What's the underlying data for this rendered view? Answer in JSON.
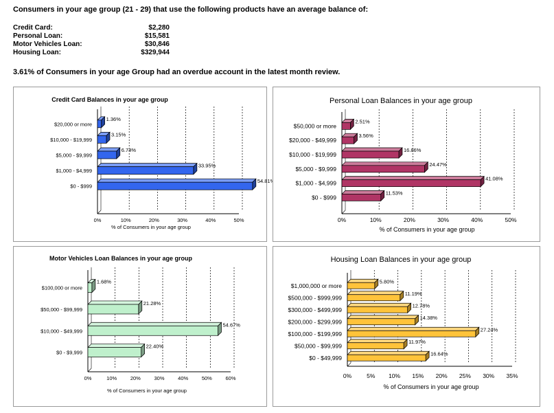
{
  "header": {
    "intro": "Consumers in your age group (21 - 29) that use the following products have an average balance of:",
    "balances": [
      {
        "label": "Credit Card:",
        "value": "$2,280"
      },
      {
        "label": "Personal Loan:",
        "value": "$15,581"
      },
      {
        "label": "Motor Vehicles Loan:",
        "value": "$30,846"
      },
      {
        "label": "Housing Loan:",
        "value": "$329,944"
      }
    ],
    "overdue": "3.61% of Consumers in your age Group had an overdue account in the latest month review."
  },
  "chart_data": [
    {
      "type": "bar",
      "title": "Credit Card Balances in your age group",
      "xlabel": "% of Consumers in your age group",
      "categories": [
        "$20,000 or more",
        "$10,000 - $19,999",
        "$5,000 - $9,999",
        "$1,000 - $4,999",
        "$0 - $999"
      ],
      "values": [
        1.36,
        3.15,
        6.74,
        33.95,
        54.81
      ],
      "value_labels": [
        "1.36%",
        "3.15%",
        "6.74%",
        "33.95%",
        "54.81%"
      ],
      "ticks": [
        "0%",
        "10%",
        "20%",
        "30%",
        "40%",
        "50%"
      ],
      "xlim": [
        0,
        50
      ],
      "color": "#3366ee"
    },
    {
      "type": "bar",
      "title": "Personal Loan Balances in your age group",
      "xlabel": "% of Consumers in your age group",
      "categories": [
        "$50,000 or more",
        "$20,000 - $49,999",
        "$10,000 - $19,999",
        "$5,000 - $9,999",
        "$1,000 - $4,999",
        "$0 - $999"
      ],
      "values": [
        2.51,
        3.56,
        16.86,
        24.47,
        41.08,
        11.53
      ],
      "value_labels": [
        "2.51%",
        "3.56%",
        "16.86%",
        "24.47%",
        "41.08%",
        "11.53%"
      ],
      "ticks": [
        "0%",
        "10%",
        "20%",
        "30%",
        "40%",
        "50%"
      ],
      "xlim": [
        0,
        50
      ],
      "color": "#b03565"
    },
    {
      "type": "bar",
      "title": "Motor Vehicles Loan Balances in your age group",
      "xlabel": "% of Consumers in your age group",
      "categories": [
        "$100,000 or more",
        "$50,000 - $99,999",
        "$10,000 - $49,999",
        "$0 - $9,999"
      ],
      "values": [
        1.68,
        21.28,
        54.67,
        22.4
      ],
      "value_labels": [
        "1.68%",
        "21.28%",
        "54.67%",
        "22.40%"
      ],
      "ticks": [
        "0%",
        "10%",
        "20%",
        "30%",
        "40%",
        "50%",
        "60%"
      ],
      "xlim": [
        0,
        60
      ],
      "color": "#bff0cc"
    },
    {
      "type": "bar",
      "title": "Housing Loan Balances in your age group",
      "xlabel": "% of Consumers in your age group",
      "categories": [
        "$1,000,000 or more",
        "$500,000 - $999,999",
        "$300,000 - $499,999",
        "$200,000 - $299,999",
        "$100,000 - $199,999",
        "$50,000 - $99,999",
        "$0 - $49,999"
      ],
      "values": [
        5.8,
        11.19,
        12.78,
        14.38,
        27.24,
        11.97,
        16.64
      ],
      "value_labels": [
        "5.80%",
        "11.19%",
        "12.78%",
        "14.38%",
        "27.24%",
        "11.97%",
        "16.64%"
      ],
      "ticks": [
        "0%",
        "5%",
        "10%",
        "15%",
        "20%",
        "25%",
        "30%",
        "35%"
      ],
      "xlim": [
        0,
        35
      ],
      "color": "#ffc33a"
    }
  ]
}
